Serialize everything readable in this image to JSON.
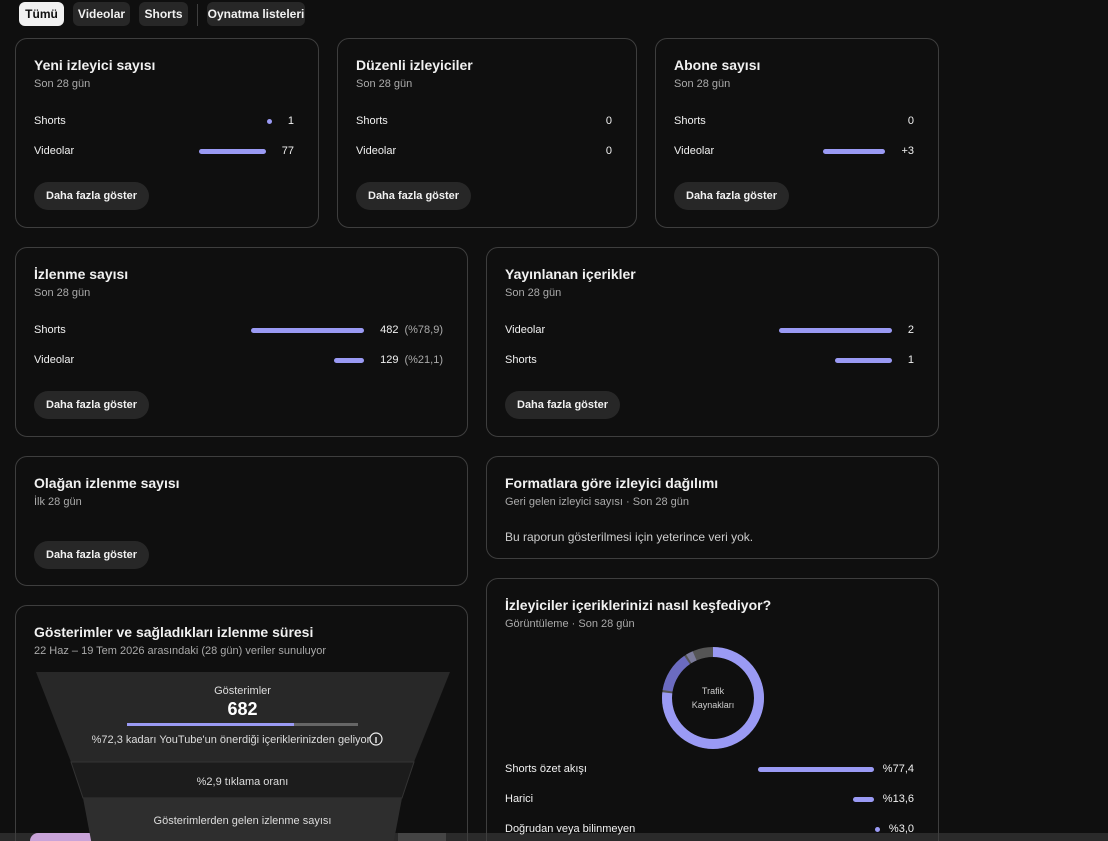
{
  "tabs": [
    "Tümü",
    "Videolar",
    "Shorts",
    "Oynatma listeleri"
  ],
  "cards": [
    {
      "title": "Yeni izleyici sayısı",
      "subtitle": "Son 28 gün",
      "rows": [
        {
          "label": "Shorts",
          "value": 1
        },
        {
          "label": "Videolar",
          "value": 77
        }
      ],
      "button": "Daha fazla göster"
    },
    {
      "title": "Düzenli izleyiciler",
      "subtitle": "Son 28 gün",
      "rows": [
        {
          "label": "Shorts",
          "value": 0
        },
        {
          "label": "Videolar",
          "value": 0
        }
      ],
      "button": "Daha fazla göster"
    },
    {
      "title": "Abone sayısı",
      "subtitle": "Son 28 gün",
      "rows": [
        {
          "label": "Shorts",
          "value": 0
        },
        {
          "label": "Videolar",
          "value": 3,
          "value_label": "+3"
        }
      ],
      "button": "Daha fazla göster"
    },
    {
      "title": "İzlenme sayısı",
      "subtitle": "Son 28 gün",
      "rows": [
        {
          "label": "Shorts",
          "value": 482,
          "share": "(%78,9)"
        },
        {
          "label": "Videolar",
          "value": 129,
          "share": "(%21,1)"
        }
      ],
      "button": "Daha fazla göster"
    },
    {
      "title": "Yayınlanan içerikler",
      "subtitle": "Son 28 gün",
      "rows": [
        {
          "label": "Videolar",
          "value": 2
        },
        {
          "label": "Shorts",
          "value": 1
        }
      ],
      "button": "Daha fazla göster"
    },
    {
      "title": "Olağan izlenme sayısı",
      "subtitle": "İlk 28 gün",
      "button": "Daha fazla göster"
    },
    {
      "title": "Formatlara göre izleyici dağılımı",
      "subtitle": "Geri gelen izleyici sayısı · Son 28 gün",
      "message": "Bu raporun gösterilmesi için yeterince veri yok."
    },
    {
      "title": "Gösterimler ve sağladıkları izlenme süresi",
      "subtitle": "22 Haz – 19 Tem 2026 arasındaki (28 gün) veriler sunuluyor",
      "funnel": {
        "impressions_label": "Gösterimler",
        "impressions": 682,
        "note": "%72,3 kadarı YouTube'un önerdiği içeriklerinizden geliyor",
        "ctr": "%2,9 tıklama oranı",
        "views_label": "Gösterimlerden gelen izlenme sayısı"
      }
    },
    {
      "title": "İzleyiciler içeriklerinizi nasıl keşfediyor?",
      "subtitle": "Görüntüleme · Son 28 gün",
      "center_label": [
        "Trafik",
        "Kaynakları"
      ],
      "rows": [
        {
          "label": "Shorts özet akışı",
          "value": 77.4,
          "value_label": "%77,4"
        },
        {
          "label": "Harici",
          "value": 13.6,
          "value_label": "%13,6"
        },
        {
          "label": "Doğrudan veya bilinmeyen",
          "value": 3.0,
          "value_label": "%3,0"
        }
      ]
    }
  ]
}
